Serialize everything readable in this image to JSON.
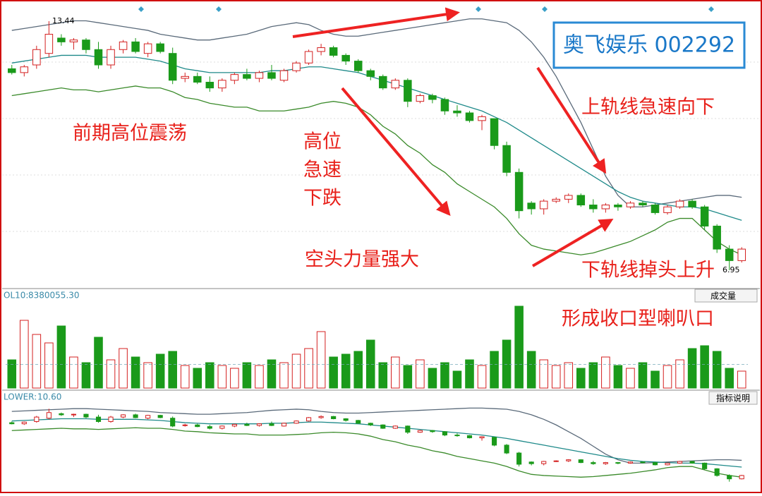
{
  "chart_data": {
    "type": "candlestick",
    "title": "奥飞娱乐 002292",
    "annotations": [
      "前期高位震荡",
      "高位",
      "急速",
      "下跌",
      "空头力量强大",
      "上轨线急速向下",
      "下轨线掉头上升",
      "形成收口型喇叭口"
    ],
    "high_label": "13.44",
    "low_label": "6.95",
    "ylim": [
      6.49,
      13.9
    ],
    "ohlc": [
      [
        12.2,
        12.3,
        12.05,
        12.1
      ],
      [
        12.1,
        12.3,
        12.0,
        12.25
      ],
      [
        12.3,
        12.8,
        12.2,
        12.7
      ],
      [
        12.6,
        13.44,
        12.5,
        13.1
      ],
      [
        13.0,
        13.1,
        12.8,
        12.9
      ],
      [
        12.9,
        13.0,
        12.7,
        12.95
      ],
      [
        12.95,
        13.0,
        12.6,
        12.7
      ],
      [
        12.7,
        12.9,
        12.2,
        12.3
      ],
      [
        12.3,
        12.8,
        12.2,
        12.7
      ],
      [
        12.7,
        12.95,
        12.6,
        12.9
      ],
      [
        12.9,
        13.0,
        12.6,
        12.65
      ],
      [
        12.6,
        12.9,
        12.5,
        12.85
      ],
      [
        12.85,
        12.9,
        12.6,
        12.65
      ],
      [
        12.6,
        12.75,
        11.8,
        11.9
      ],
      [
        11.95,
        12.1,
        11.85,
        12.0
      ],
      [
        12.0,
        12.1,
        11.8,
        11.85
      ],
      [
        11.85,
        12.0,
        11.6,
        11.7
      ],
      [
        11.7,
        11.95,
        11.6,
        11.9
      ],
      [
        11.9,
        12.1,
        11.8,
        12.05
      ],
      [
        12.05,
        12.2,
        11.9,
        11.95
      ],
      [
        11.95,
        12.15,
        11.85,
        12.1
      ],
      [
        12.1,
        12.3,
        11.9,
        11.95
      ],
      [
        11.9,
        12.2,
        11.85,
        12.15
      ],
      [
        12.15,
        12.4,
        12.1,
        12.35
      ],
      [
        12.35,
        12.7,
        12.3,
        12.65
      ],
      [
        12.65,
        12.85,
        12.55,
        12.75
      ],
      [
        12.75,
        12.8,
        12.5,
        12.55
      ],
      [
        12.55,
        12.6,
        12.3,
        12.4
      ],
      [
        12.4,
        12.45,
        12.1,
        12.15
      ],
      [
        12.15,
        12.2,
        11.9,
        12.0
      ],
      [
        12.0,
        12.05,
        11.65,
        11.7
      ],
      [
        11.7,
        11.95,
        11.65,
        11.9
      ],
      [
        11.9,
        11.95,
        11.2,
        11.35
      ],
      [
        11.35,
        11.55,
        11.3,
        11.5
      ],
      [
        11.5,
        11.55,
        11.3,
        11.4
      ],
      [
        11.4,
        11.45,
        11.0,
        11.1
      ],
      [
        11.1,
        11.25,
        10.95,
        11.05
      ],
      [
        11.05,
        11.1,
        10.8,
        10.85
      ],
      [
        10.85,
        11.0,
        10.6,
        10.95
      ],
      [
        10.9,
        10.9,
        10.1,
        10.2
      ],
      [
        10.2,
        10.3,
        9.4,
        9.5
      ],
      [
        9.5,
        9.6,
        8.3,
        8.5
      ],
      [
        8.7,
        8.75,
        8.4,
        8.55
      ],
      [
        8.55,
        8.8,
        8.4,
        8.75
      ],
      [
        8.75,
        8.85,
        8.7,
        8.8
      ],
      [
        8.8,
        8.95,
        8.7,
        8.9
      ],
      [
        8.9,
        8.95,
        8.6,
        8.65
      ],
      [
        8.65,
        8.8,
        8.45,
        8.55
      ],
      [
        8.55,
        8.7,
        8.45,
        8.65
      ],
      [
        8.65,
        8.7,
        8.5,
        8.6
      ],
      [
        8.6,
        8.75,
        8.55,
        8.7
      ],
      [
        8.7,
        8.75,
        8.6,
        8.65
      ],
      [
        8.65,
        8.7,
        8.4,
        8.45
      ],
      [
        8.45,
        8.65,
        8.4,
        8.6
      ],
      [
        8.6,
        8.8,
        8.55,
        8.75
      ],
      [
        8.75,
        8.8,
        8.55,
        8.6
      ],
      [
        8.6,
        8.65,
        8.0,
        8.1
      ],
      [
        8.1,
        8.15,
        7.4,
        7.5
      ],
      [
        7.5,
        7.6,
        6.95,
        7.2
      ],
      [
        7.2,
        7.55,
        7.15,
        7.5
      ]
    ],
    "bands": [
      {
        "name": "UPPER",
        "color": "#5a6a7a",
        "values": [
          13.2,
          13.25,
          13.3,
          13.35,
          13.4,
          13.45,
          13.45,
          13.4,
          13.35,
          13.3,
          13.25,
          13.2,
          13.1,
          13.05,
          13.0,
          12.95,
          12.95,
          13.0,
          13.05,
          13.1,
          13.2,
          13.3,
          13.35,
          13.4,
          13.35,
          13.2,
          13.1,
          13.05,
          13.05,
          13.1,
          13.15,
          13.2,
          13.25,
          13.3,
          13.35,
          13.4,
          13.45,
          13.5,
          13.5,
          13.45,
          13.4,
          13.2,
          12.9,
          12.5,
          12.0,
          11.4,
          10.8,
          10.1,
          9.4,
          8.9,
          8.6,
          8.6,
          8.65,
          8.7,
          8.75,
          8.8,
          8.85,
          8.9,
          8.9,
          8.85
        ]
      },
      {
        "name": "MID",
        "color": "#1f8a8a",
        "values": [
          12.35,
          12.4,
          12.45,
          12.5,
          12.55,
          12.55,
          12.55,
          12.5,
          12.5,
          12.5,
          12.5,
          12.45,
          12.4,
          12.3,
          12.2,
          12.15,
          12.1,
          12.1,
          12.1,
          12.1,
          12.1,
          12.15,
          12.15,
          12.2,
          12.25,
          12.25,
          12.2,
          12.15,
          12.1,
          12.0,
          11.9,
          11.8,
          11.7,
          11.6,
          11.5,
          11.4,
          11.3,
          11.2,
          11.1,
          10.95,
          10.8,
          10.6,
          10.4,
          10.2,
          10.0,
          9.8,
          9.6,
          9.4,
          9.2,
          9.0,
          8.85,
          8.75,
          8.7,
          8.65,
          8.6,
          8.6,
          8.55,
          8.45,
          8.35,
          8.25
        ]
      },
      {
        "name": "LOWER",
        "color": "#3a8a2a",
        "values": [
          11.5,
          11.55,
          11.6,
          11.65,
          11.7,
          11.65,
          11.65,
          11.6,
          11.65,
          11.7,
          11.75,
          11.7,
          11.7,
          11.6,
          11.45,
          11.4,
          11.3,
          11.25,
          11.2,
          11.2,
          11.1,
          11.1,
          11.1,
          11.15,
          11.2,
          11.3,
          11.35,
          11.3,
          11.2,
          11.0,
          10.7,
          10.5,
          10.2,
          10.0,
          9.7,
          9.5,
          9.2,
          9.0,
          8.8,
          8.6,
          8.3,
          7.9,
          7.6,
          7.5,
          7.45,
          7.4,
          7.35,
          7.4,
          7.5,
          7.6,
          7.7,
          7.85,
          8.0,
          8.2,
          8.3,
          8.3,
          8.0,
          7.7,
          7.5,
          7.35
        ]
      }
    ],
    "volume": [
      10000000,
      24000000,
      19000000,
      16000000,
      22000000,
      11000000,
      9000000,
      18000000,
      10000000,
      14000000,
      11000000,
      9000000,
      12000000,
      13000000,
      8000000,
      7000000,
      9000000,
      8000000,
      7000000,
      9000000,
      8000000,
      10000000,
      9000000,
      12000000,
      14000000,
      20000000,
      11000000,
      12000000,
      13000000,
      17000000,
      9000000,
      11000000,
      8000000,
      10000000,
      7000000,
      9000000,
      6000000,
      10000000,
      8000000,
      13000000,
      17000000,
      29000000,
      13000000,
      10000000,
      8000000,
      9000000,
      7000000,
      9000000,
      11000000,
      8000000,
      7000000,
      9000000,
      6000000,
      8000000,
      10000000,
      14000000,
      15000000,
      13000000,
      7000000,
      6000000
    ],
    "vlim": [
      0,
      30000000
    ],
    "vol_title": "OL10:",
    "vol_ma": {
      "value": 8380055.3,
      "label": "8380055.30"
    },
    "vol_menu": "成交量",
    "lower_title": "LOWER:",
    "lower_value": {
      "value": 10.6,
      "label": "10.60"
    },
    "lower_menu": "指标说明",
    "up_color": "#d42020",
    "down_color": "#1a9a1a"
  }
}
